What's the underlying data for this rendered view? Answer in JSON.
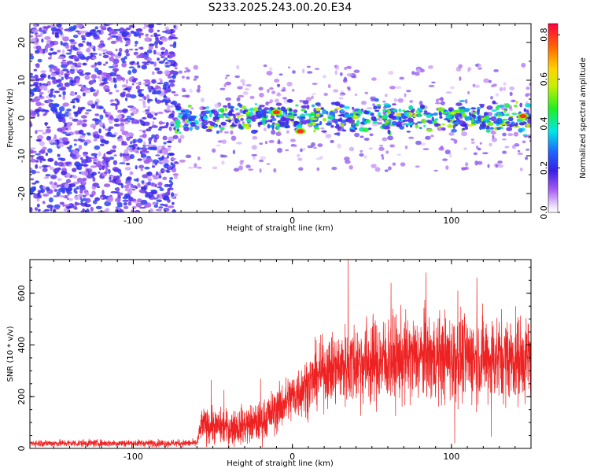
{
  "title": "S233.2025.243.00.20.E34",
  "colors": {
    "snr_line": "#ee2222",
    "background": "#ffffff"
  },
  "chart_data": [
    {
      "type": "heatmap",
      "title": "S233.2025.243.00.20.E34",
      "xlabel": "Height of straight line (km)",
      "ylabel": "Frequency (Hz)",
      "xlim": [
        -165,
        150
      ],
      "ylim": [
        -25,
        25
      ],
      "xticks": [
        -100,
        0,
        100
      ],
      "yticks": [
        -20,
        -10,
        0,
        10,
        20
      ],
      "colorbar": {
        "label": "Normalized spectral amplitude",
        "range": [
          0.0,
          0.85
        ],
        "ticks": [
          0.0,
          0.2,
          0.4,
          0.6,
          0.8
        ],
        "colormap": "rainbow (white-violet-blue-cyan-green-yellow-red)"
      },
      "regions": [
        {
          "x_range": [
            -165,
            -73
          ],
          "description": "broadband noise",
          "amplitude": [
            0.05,
            0.25
          ]
        },
        {
          "x_range": [
            -73,
            150
          ],
          "description": "signal band centered near 0 Hz",
          "freq_center": 0,
          "freq_halfwidth": 4,
          "amplitude": [
            0.15,
            0.85
          ]
        }
      ],
      "peaks": [
        {
          "x": -10,
          "y": 1.5,
          "value": 0.8
        },
        {
          "x": 5,
          "y": -3.5,
          "value": 0.8
        },
        {
          "x": 145,
          "y": 0.5,
          "value": 0.8
        }
      ]
    },
    {
      "type": "line",
      "title": "",
      "xlabel": "Height of straight line (km)",
      "ylabel": "SNR (10 * v/v)",
      "xlim": [
        -165,
        150
      ],
      "ylim": [
        0,
        730
      ],
      "xticks": [
        -100,
        0,
        100
      ],
      "yticks": [
        0,
        200,
        400,
        600
      ],
      "grid": false,
      "series": [
        {
          "name": "SNR",
          "color": "#ee2222",
          "trend": {
            "x": [
              -165,
              -60,
              -57,
              -40,
              -30,
              -20,
              -10,
              0,
              10,
              20,
              40,
              60,
              80,
              100,
              120,
              150
            ],
            "y": [
              20,
              20,
              90,
              80,
              90,
              100,
              150,
              200,
              250,
              300,
              330,
              340,
              350,
              350,
              350,
              350
            ]
          },
          "spread": {
            "x": [
              -165,
              -60,
              -57,
              -20,
              0,
              20,
              40,
              150
            ],
            "y": [
              10,
              10,
              45,
              55,
              70,
              90,
              120,
              120
            ]
          },
          "spikes": [
            {
              "x": -51,
              "y": 265
            },
            {
              "x": -43,
              "y": 225
            },
            {
              "x": -20,
              "y": 270
            },
            {
              "x": 35,
              "y": 735
            },
            {
              "x": 84,
              "y": 680
            },
            {
              "x": 116,
              "y": 660
            },
            {
              "x": 104,
              "y": 610
            },
            {
              "x": 62,
              "y": 640
            },
            {
              "x": 102,
              "y": 20
            },
            {
              "x": 125,
              "y": 45
            }
          ]
        }
      ]
    }
  ]
}
